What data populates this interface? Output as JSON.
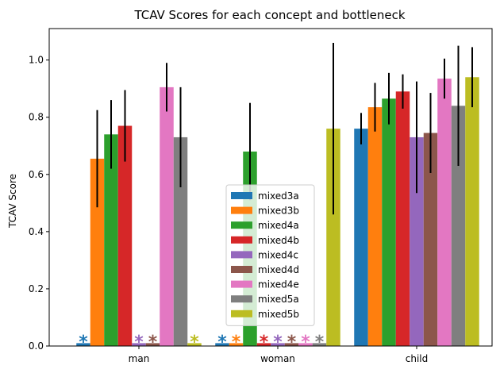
{
  "chart_data": {
    "type": "bar",
    "title": "TCAV Scores for each concept and bottleneck",
    "xlabel": "",
    "ylabel": "TCAV Score",
    "ylim": [
      0,
      1.11
    ],
    "yticks": [
      0.0,
      0.2,
      0.4,
      0.6,
      0.8,
      1.0
    ],
    "ytick_labels": [
      "0.0",
      "0.2",
      "0.4",
      "0.6",
      "0.8",
      "1.0"
    ],
    "categories": [
      "man",
      "woman",
      "child"
    ],
    "grid": false,
    "legend_position": "lower-center",
    "insignificant_marker": "*",
    "series": [
      {
        "name": "mixed3a",
        "color": "#1f77b4",
        "values": [
          0.01,
          0.01,
          0.76
        ],
        "err": [
          0,
          0,
          0.055
        ],
        "insignificant": [
          true,
          true,
          false
        ]
      },
      {
        "name": "mixed3b",
        "color": "#ff7f0e",
        "values": [
          0.655,
          0.01,
          0.835
        ],
        "err": [
          0.17,
          0,
          0.085
        ],
        "insignificant": [
          false,
          true,
          false
        ]
      },
      {
        "name": "mixed4a",
        "color": "#2ca02c",
        "values": [
          0.74,
          0.68,
          0.865
        ],
        "err": [
          0.12,
          0.17,
          0.09
        ],
        "insignificant": [
          false,
          false,
          false
        ]
      },
      {
        "name": "mixed4b",
        "color": "#d62728",
        "values": [
          0.77,
          0.01,
          0.89
        ],
        "err": [
          0.125,
          0,
          0.06
        ],
        "insignificant": [
          false,
          true,
          false
        ]
      },
      {
        "name": "mixed4c",
        "color": "#9467bd",
        "values": [
          0.01,
          0.01,
          0.73
        ],
        "err": [
          0,
          0,
          0.195
        ],
        "insignificant": [
          true,
          true,
          false
        ]
      },
      {
        "name": "mixed4d",
        "color": "#8c564b",
        "values": [
          0.01,
          0.01,
          0.745
        ],
        "err": [
          0,
          0,
          0.14
        ],
        "insignificant": [
          true,
          true,
          false
        ]
      },
      {
        "name": "mixed4e",
        "color": "#e377c2",
        "values": [
          0.905,
          0.01,
          0.935
        ],
        "err": [
          0.085,
          0,
          0.07
        ],
        "insignificant": [
          false,
          true,
          false
        ]
      },
      {
        "name": "mixed5a",
        "color": "#7f7f7f",
        "values": [
          0.73,
          0.01,
          0.84
        ],
        "err": [
          0.175,
          0,
          0.21
        ],
        "insignificant": [
          false,
          true,
          false
        ]
      },
      {
        "name": "mixed5b",
        "color": "#bcbd22",
        "values": [
          0.01,
          0.76,
          0.94
        ],
        "err": [
          0,
          0.3,
          0.105
        ],
        "insignificant": [
          true,
          false,
          false
        ]
      }
    ]
  }
}
